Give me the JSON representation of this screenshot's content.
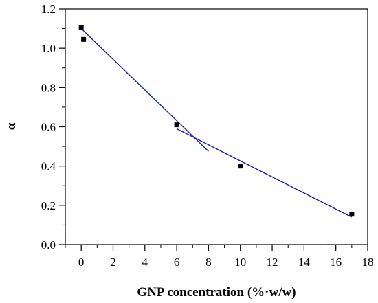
{
  "chart_data": {
    "type": "scatter",
    "xlabel": "GNP concentration (%·w/w)",
    "ylabel": "α",
    "xlim": [
      -1,
      18
    ],
    "ylim": [
      0,
      1.2
    ],
    "x_ticks": [
      0,
      2,
      4,
      6,
      8,
      10,
      12,
      14,
      16,
      18
    ],
    "x_tick_labels": [
      "0",
      "2",
      "4",
      "6",
      "8",
      "10",
      "12",
      "14",
      "16",
      "18"
    ],
    "y_ticks": [
      0,
      0.2,
      0.4,
      0.6,
      0.8,
      1.0,
      1.2
    ],
    "y_tick_labels": [
      "0.0",
      "0.2",
      "0.4",
      "0.6",
      "0.8",
      "1.0",
      "1.2"
    ],
    "grid": false,
    "points": [
      {
        "x": 0.0,
        "y": 1.105
      },
      {
        "x": 0.15,
        "y": 1.045
      },
      {
        "x": 6.0,
        "y": 0.61
      },
      {
        "x": 10.0,
        "y": 0.4
      },
      {
        "x": 17.0,
        "y": 0.155
      }
    ],
    "fit_lines": [
      {
        "x": [
          0.0,
          8.0
        ],
        "y": [
          1.1,
          0.475
        ]
      },
      {
        "x": [
          6.0,
          17.0
        ],
        "y": [
          0.59,
          0.14
        ]
      }
    ],
    "marker_color": "#000000",
    "line_color": "#1a1ab4"
  }
}
